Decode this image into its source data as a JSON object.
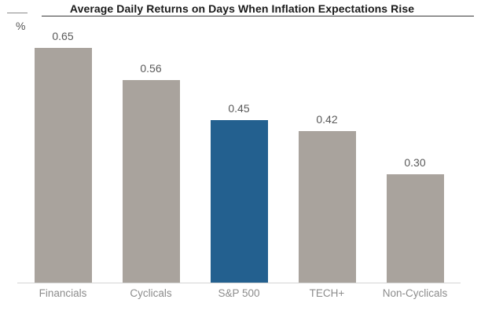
{
  "header": {
    "title": "Average Daily Returns on Days When Inflation Expectations Rise",
    "unit_label": "%"
  },
  "chart_data": {
    "type": "bar",
    "title": "Average Daily Returns on Days When Inflation Expectations Rise",
    "categories": [
      "Financials",
      "Cyclicals",
      "S&P 500",
      "TECH+",
      "Non-Cyclicals"
    ],
    "values": [
      0.65,
      0.56,
      0.45,
      0.42,
      0.3
    ],
    "value_labels": [
      "0.65",
      "0.56",
      "0.45",
      "0.42",
      "0.30"
    ],
    "xlabel": "",
    "ylabel": "%",
    "ylim": [
      0,
      0.78
    ],
    "grid": false,
    "legend": "none",
    "highlight_category": "S&P 500",
    "colors": {
      "bar_default": "#a9a39d",
      "bar_highlight": "#23608f",
      "axis_line": "#d5d5d5",
      "value_label": "#595959",
      "category_label": "#8c8c8c",
      "title_text": "#1a1a1a",
      "title_underline": "#3a3a3a"
    }
  }
}
